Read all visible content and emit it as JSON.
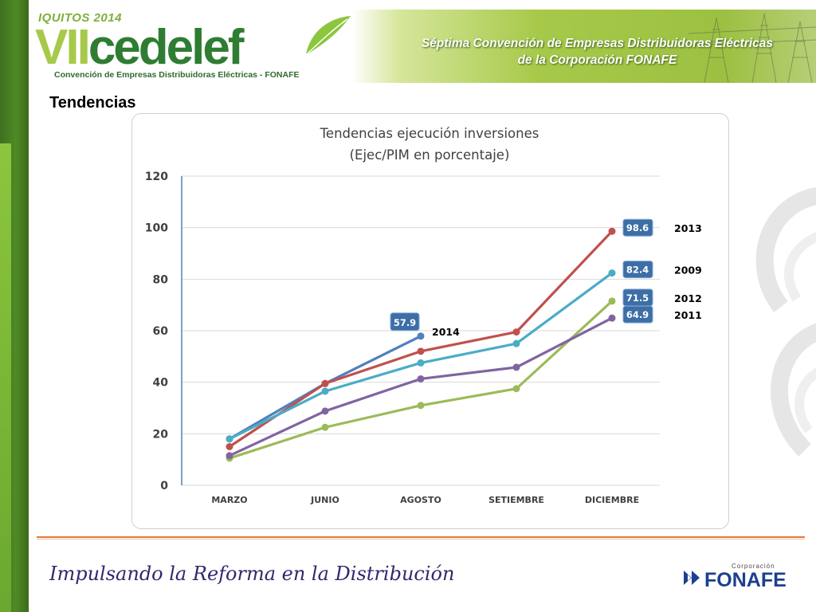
{
  "header": {
    "logo_year": "IQUITOS 2014",
    "logo_word_a": "VII",
    "logo_word_b": "cedelef",
    "logo_subtitle": "Convención de Empresas Distribuidoras Eléctricas - FONAFE",
    "banner_line1": "Séptima Convención de Empresas Distribuidoras Eléctricas",
    "banner_line2": "de la Corporación FONAFE",
    "accent_color": "#8cc63e"
  },
  "page": {
    "section_title": "Tendencias"
  },
  "chart_data": {
    "type": "line",
    "title": "Tendencias ejecución inversiones",
    "subtitle": "(Ejec/PIM en porcentaje)",
    "xlabel": "",
    "ylabel": "",
    "categories": [
      "MARZO",
      "JUNIO",
      "AGOSTO",
      "SETIEMBRE",
      "DICIEMBRE"
    ],
    "ylim": [
      0,
      120
    ],
    "yticks": [
      "0",
      "20",
      "40",
      "60",
      "80",
      "100",
      "120"
    ],
    "grid": true,
    "series": [
      {
        "name": "2014",
        "color": "#4f81bd",
        "values": [
          18,
          39.5,
          57.9,
          null,
          null
        ],
        "end_label": "57.9"
      },
      {
        "name": "2013",
        "color": "#c0504d",
        "values": [
          15,
          39.5,
          52,
          59.5,
          98.6
        ],
        "end_label": "98.6"
      },
      {
        "name": "2009",
        "color": "#4bacc6",
        "values": [
          18,
          36.5,
          47.5,
          55,
          82.4
        ],
        "end_label": "82.4"
      },
      {
        "name": "2012",
        "color": "#9bbb59",
        "values": [
          10.5,
          22.5,
          31,
          37.5,
          71.5
        ],
        "end_label": "71.5"
      },
      {
        "name": "2011",
        "color": "#8064a2",
        "values": [
          11.5,
          28.8,
          41.3,
          45.8,
          64.9
        ],
        "end_label": "64.9"
      }
    ],
    "label_box_color": "#3d6ea6"
  },
  "footer": {
    "motto": "Impulsando la Reforma en la Distribución",
    "logo_corp": "Corporación",
    "logo_name": "FONAFE",
    "rule_color": "#e07a3a"
  }
}
